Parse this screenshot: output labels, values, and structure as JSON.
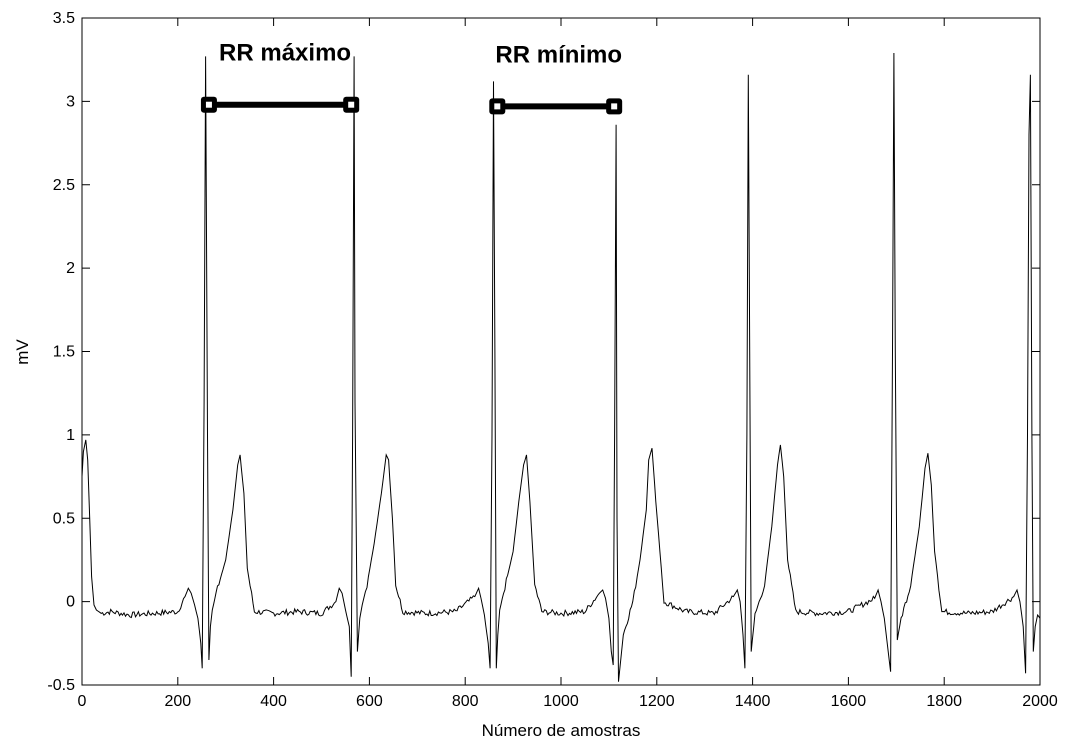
{
  "chart_data": {
    "type": "line",
    "title": "",
    "xlabel": "Número de amostras",
    "ylabel": "mV",
    "xlim": [
      0,
      2000
    ],
    "ylim": [
      -0.5,
      3.5
    ],
    "grid": false,
    "x_ticks": [
      0,
      200,
      400,
      600,
      800,
      1000,
      1200,
      1400,
      1600,
      1800,
      2000
    ],
    "x_tick_labels": [
      "0",
      "200",
      "400",
      "600",
      "800",
      "1000",
      "1200",
      "1400",
      "1600",
      "1800",
      "2000"
    ],
    "y_ticks": [
      -0.5,
      0,
      0.5,
      1,
      1.5,
      2,
      2.5,
      3,
      3.5
    ],
    "y_tick_labels": [
      "-0.5",
      "0",
      "0.5",
      "1",
      "1.5",
      "2",
      "2.5",
      "3",
      "3.5"
    ],
    "series": [
      {
        "color": "#000000",
        "x": [
          0,
          3,
          8,
          12,
          16,
          20,
          25,
          30,
          40,
          60,
          100,
          150,
          200,
          215,
          222,
          228,
          235,
          242,
          248,
          251,
          255,
          258,
          262,
          265,
          268,
          272,
          280,
          300,
          315,
          325,
          330,
          338,
          345,
          360,
          400,
          450,
          500,
          530,
          537,
          543,
          550,
          558,
          562,
          565,
          568,
          570,
          575,
          580,
          585,
          595,
          610,
          625,
          635,
          640,
          648,
          655,
          670,
          720,
          780,
          820,
          828,
          833,
          840,
          848,
          852,
          856,
          859,
          862,
          865,
          868,
          872,
          880,
          900,
          912,
          922,
          928,
          935,
          945,
          960,
          1000,
          1050,
          1080,
          1087,
          1093,
          1100,
          1105,
          1109,
          1112,
          1115,
          1117,
          1120,
          1130,
          1150,
          1165,
          1178,
          1183,
          1190,
          1198,
          1215,
          1260,
          1320,
          1360,
          1368,
          1374,
          1380,
          1384,
          1388,
          1391,
          1394,
          1397,
          1405,
          1425,
          1440,
          1452,
          1458,
          1465,
          1473,
          1490,
          1540,
          1600,
          1655,
          1662,
          1668,
          1675,
          1683,
          1688,
          1692,
          1695,
          1698,
          1702,
          1710,
          1730,
          1748,
          1760,
          1766,
          1773,
          1780,
          1795,
          1850,
          1900,
          1945,
          1952,
          1958,
          1965,
          1970,
          1974,
          1977,
          1980,
          1983,
          1986,
          1990,
          1995,
          2000
        ],
        "y": [
          0.75,
          0.9,
          0.97,
          0.85,
          0.5,
          0.15,
          -0.02,
          -0.05,
          -0.07,
          -0.06,
          -0.08,
          -0.07,
          -0.06,
          0.03,
          0.08,
          0.05,
          -0.02,
          -0.1,
          -0.25,
          -0.4,
          1.2,
          3.27,
          1.0,
          -0.35,
          -0.15,
          -0.05,
          0.05,
          0.25,
          0.55,
          0.82,
          0.88,
          0.65,
          0.2,
          -0.06,
          -0.07,
          -0.06,
          -0.07,
          0.0,
          0.08,
          0.05,
          -0.05,
          -0.15,
          -0.45,
          1.0,
          3.27,
          1.2,
          -0.3,
          -0.1,
          -0.02,
          0.1,
          0.35,
          0.65,
          0.88,
          0.85,
          0.5,
          0.1,
          -0.06,
          -0.07,
          -0.06,
          0.03,
          0.08,
          0.02,
          -0.08,
          -0.25,
          -0.4,
          1.0,
          3.12,
          1.5,
          -0.4,
          -0.2,
          -0.05,
          0.05,
          0.3,
          0.6,
          0.82,
          0.88,
          0.6,
          0.1,
          -0.06,
          -0.07,
          -0.06,
          0.05,
          0.07,
          0.02,
          -0.1,
          -0.3,
          -0.38,
          1.0,
          2.86,
          0.5,
          -0.48,
          -0.2,
          0.0,
          0.25,
          0.55,
          0.85,
          0.92,
          0.6,
          0.0,
          -0.06,
          -0.07,
          0.03,
          0.07,
          0.0,
          -0.2,
          -0.4,
          1.0,
          3.16,
          1.5,
          -0.3,
          -0.08,
          0.1,
          0.45,
          0.82,
          0.94,
          0.75,
          0.25,
          -0.06,
          -0.07,
          -0.06,
          0.02,
          0.07,
          0.0,
          -0.1,
          -0.3,
          -0.42,
          1.5,
          3.29,
          1.5,
          -0.23,
          -0.1,
          0.1,
          0.45,
          0.8,
          0.89,
          0.7,
          0.3,
          -0.06,
          -0.07,
          -0.06,
          0.03,
          0.07,
          0.0,
          -0.15,
          -0.43,
          1.0,
          2.8,
          3.16,
          1.0,
          -0.3,
          -0.15,
          -0.08,
          -0.1
        ]
      }
    ],
    "annotations": [
      {
        "text": "RR máximo",
        "x1": 265,
        "x2": 562,
        "y": 2.98
      },
      {
        "text": "RR mínimo",
        "x1": 867,
        "x2": 1111,
        "y": 2.97
      }
    ]
  }
}
